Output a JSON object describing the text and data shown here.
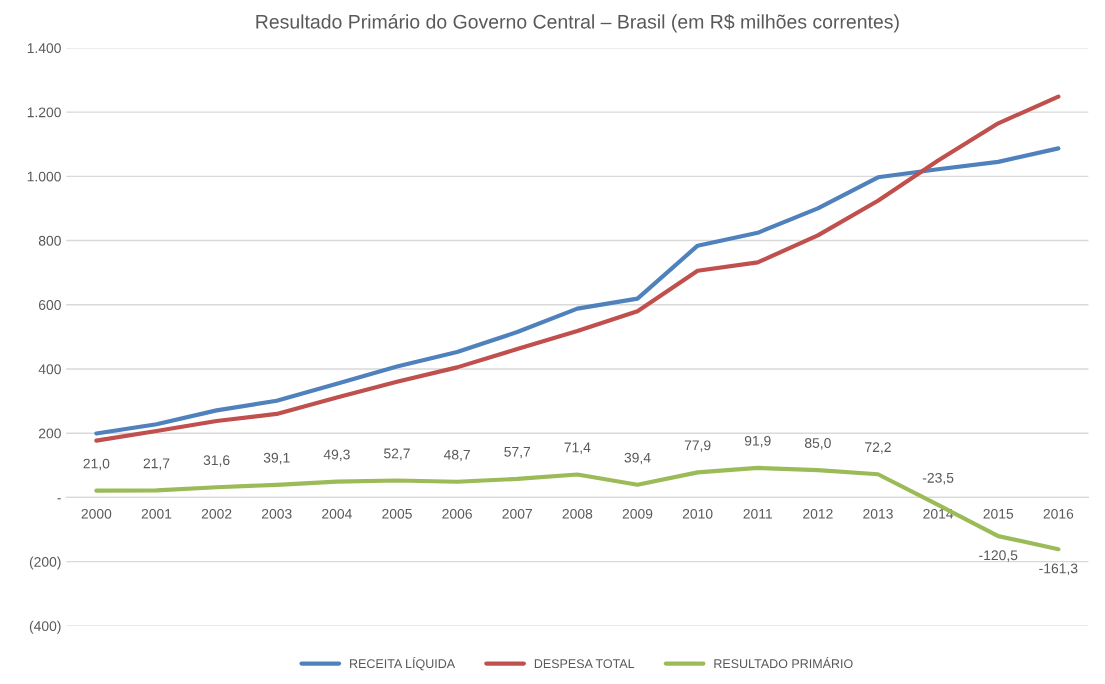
{
  "chart_data": {
    "type": "line",
    "title": "Resultado Primário do Governo Central – Brasil (em R$ milhões correntes)",
    "categories": [
      "2000",
      "2001",
      "2002",
      "2003",
      "2004",
      "2005",
      "2006",
      "2007",
      "2008",
      "2009",
      "2010",
      "2011",
      "2012",
      "2013",
      "2014",
      "2015",
      "2016"
    ],
    "series": [
      {
        "name": "RECEITA LÍQUIDA",
        "color": "#4f81bd",
        "values": [
          199,
          228,
          271,
          301,
          354,
          408,
          453,
          515,
          588,
          619,
          784,
          824,
          900,
          997,
          1022,
          1045,
          1087
        ]
      },
      {
        "name": "DESPESA TOTAL",
        "color": "#c0504d",
        "values": [
          177,
          207,
          238,
          260,
          311,
          360,
          405,
          462,
          518,
          580,
          706,
          732,
          816,
          924,
          1049,
          1165,
          1248
        ]
      },
      {
        "name": "RESULTADO PRIMÁRIO",
        "color": "#9bbb59",
        "values": [
          21.0,
          21.7,
          31.6,
          39.1,
          49.3,
          52.7,
          48.7,
          57.7,
          71.4,
          39.4,
          77.9,
          91.9,
          85.0,
          72.2,
          -23.5,
          -120.5,
          -161.3
        ],
        "value_labels": [
          "21,0",
          "21,7",
          "31,6",
          "39,1",
          "49,3",
          "52,7",
          "48,7",
          "57,7",
          "71,4",
          "39,4",
          "77,9",
          "91,9",
          "85,0",
          "72,2",
          "-23,5",
          "-120,5",
          "-161,3"
        ]
      }
    ],
    "ylim": [
      -400,
      1400
    ],
    "yticks": [
      {
        "value": -400,
        "label": "(400)"
      },
      {
        "value": -200,
        "label": "(200)"
      },
      {
        "value": 0,
        "label": "-"
      },
      {
        "value": 200,
        "label": "200"
      },
      {
        "value": 400,
        "label": "400"
      },
      {
        "value": 600,
        "label": "600"
      },
      {
        "value": 800,
        "label": "800"
      },
      {
        "value": 1000,
        "label": "1.000"
      },
      {
        "value": 1200,
        "label": "1.200"
      },
      {
        "value": 1400,
        "label": "1.400"
      }
    ],
    "grid": "y",
    "legend": "bottom",
    "marker": "none",
    "line_style": "solid"
  }
}
